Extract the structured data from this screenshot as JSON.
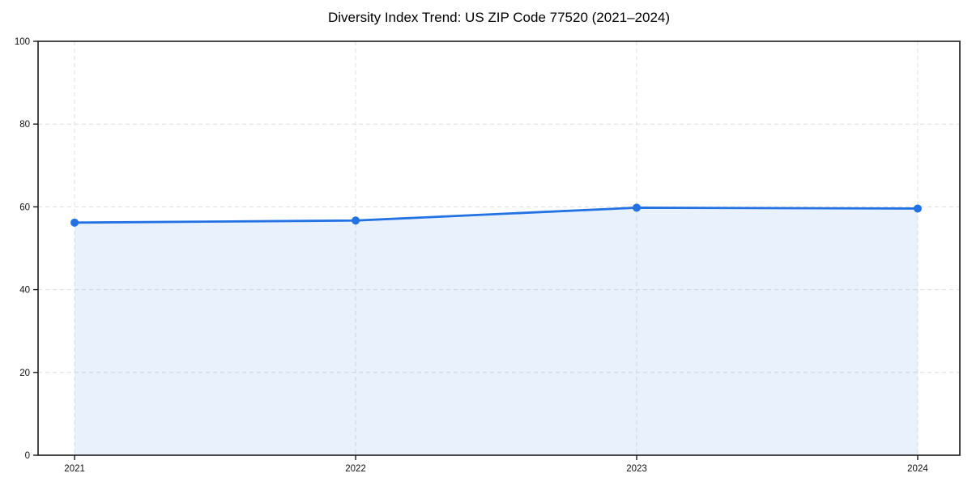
{
  "chart_data": {
    "type": "area",
    "title": "Diversity Index Trend: US ZIP Code 77520 (2021–2024)",
    "x": [
      2021,
      2022,
      2023,
      2024
    ],
    "x_tick_labels": [
      "2021",
      "2022",
      "2023",
      "2024"
    ],
    "series": [
      {
        "name": "Diversity Index",
        "values": [
          56.2,
          56.7,
          59.8,
          59.6
        ]
      }
    ],
    "xlabel": "",
    "ylabel": "",
    "xlim": [
      2020.87,
      2024.15
    ],
    "ylim": [
      0,
      100
    ],
    "yticks": [
      0,
      20,
      40,
      60,
      80,
      100
    ],
    "grid": "dashed-both-axes",
    "legend": "none",
    "marker": "circle",
    "colors": {
      "line": "#2272e3",
      "area_fill": "#2272e3",
      "area_opacity": 0.1,
      "grid": "#dedede",
      "spine": "#1a1a1a",
      "tick_label": "#111111",
      "background": "#ffffff"
    }
  }
}
